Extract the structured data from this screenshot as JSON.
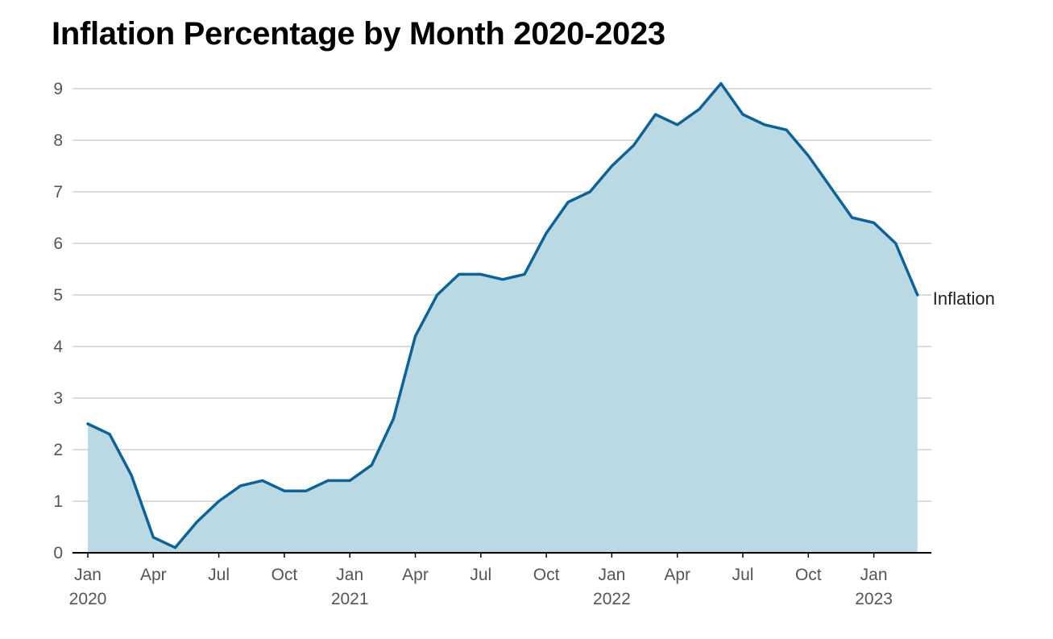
{
  "chart_data": {
    "type": "area",
    "title": "Inflation Percentage by Month 2020-2023",
    "xlabel": "",
    "ylabel": "",
    "ylim": [
      0,
      9
    ],
    "yticks": [
      "0",
      "1",
      "2",
      "3",
      "4",
      "5",
      "6",
      "7",
      "8",
      "9"
    ],
    "xticks": [
      {
        "month": "Jan",
        "year": "2020"
      },
      {
        "month": "Apr",
        "year": ""
      },
      {
        "month": "Jul",
        "year": ""
      },
      {
        "month": "Oct",
        "year": ""
      },
      {
        "month": "Jan",
        "year": "2021"
      },
      {
        "month": "Apr",
        "year": ""
      },
      {
        "month": "Jul",
        "year": ""
      },
      {
        "month": "Oct",
        "year": ""
      },
      {
        "month": "Jan",
        "year": "2022"
      },
      {
        "month": "Apr",
        "year": ""
      },
      {
        "month": "Jul",
        "year": ""
      },
      {
        "month": "Oct",
        "year": ""
      },
      {
        "month": "Jan",
        "year": "2023"
      }
    ],
    "series": [
      {
        "name": "Inflation",
        "start": "2020-01",
        "values": [
          2.5,
          2.3,
          1.5,
          0.3,
          0.1,
          0.6,
          1.0,
          1.3,
          1.4,
          1.2,
          1.2,
          1.4,
          1.4,
          1.7,
          2.6,
          4.2,
          5.0,
          5.4,
          5.4,
          5.3,
          5.4,
          6.2,
          6.8,
          7.0,
          7.5,
          7.9,
          8.5,
          8.3,
          8.6,
          9.1,
          8.5,
          8.3,
          8.2,
          7.7,
          7.1,
          6.5,
          6.4,
          6.0,
          5.0
        ]
      }
    ],
    "grid": true,
    "colors": {
      "line": "#0b6399",
      "fill": "#bbd9e2",
      "grid": "#d0d0d0",
      "axis": "#000000"
    }
  }
}
